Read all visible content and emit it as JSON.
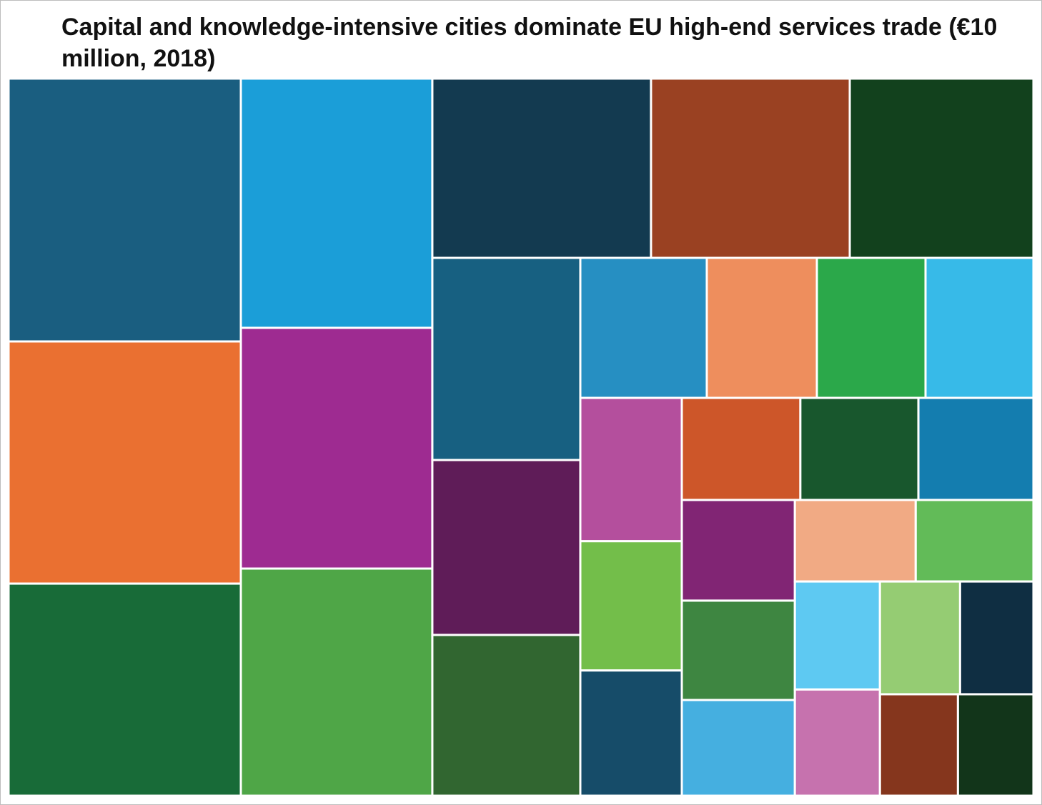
{
  "chart_data": {
    "type": "treemap",
    "title": "Capital and knowledge-intensive cities dominate EU high-end services trade (€10 million, 2018)",
    "values": [
      1196,
      1102,
      965,
      935,
      903,
      852,
      768,
      698,
      645,
      586,
      507,
      466,
      347,
      302,
      298,
      296,
      285,
      257,
      249,
      237,
      236,
      230,
      223,
      220,
      212,
      193,
      188,
      180,
      177,
      177,
      162,
      155,
      150
    ],
    "colors": [
      "#1a5e80",
      "#ea7031",
      "#186b38",
      "#1b9ed8",
      "#9e2b91",
      "#4fa647",
      "#133a50",
      "#9a4122",
      "#12411d",
      "#176081",
      "#5f1c58",
      "#316630",
      "#268fc2",
      "#ee8e5d",
      "#2ba84a",
      "#37bae8",
      "#b44f9d",
      "#73be4a",
      "#164c69",
      "#cd5629",
      "#18572d",
      "#147daf",
      "#812574",
      "#3e8641",
      "#45afe0",
      "#f1aa84",
      "#62bb58",
      "#5ec9f2",
      "#c672ae",
      "#95cc73",
      "#0f2e42",
      "#85361d",
      "#12351a"
    ]
  }
}
